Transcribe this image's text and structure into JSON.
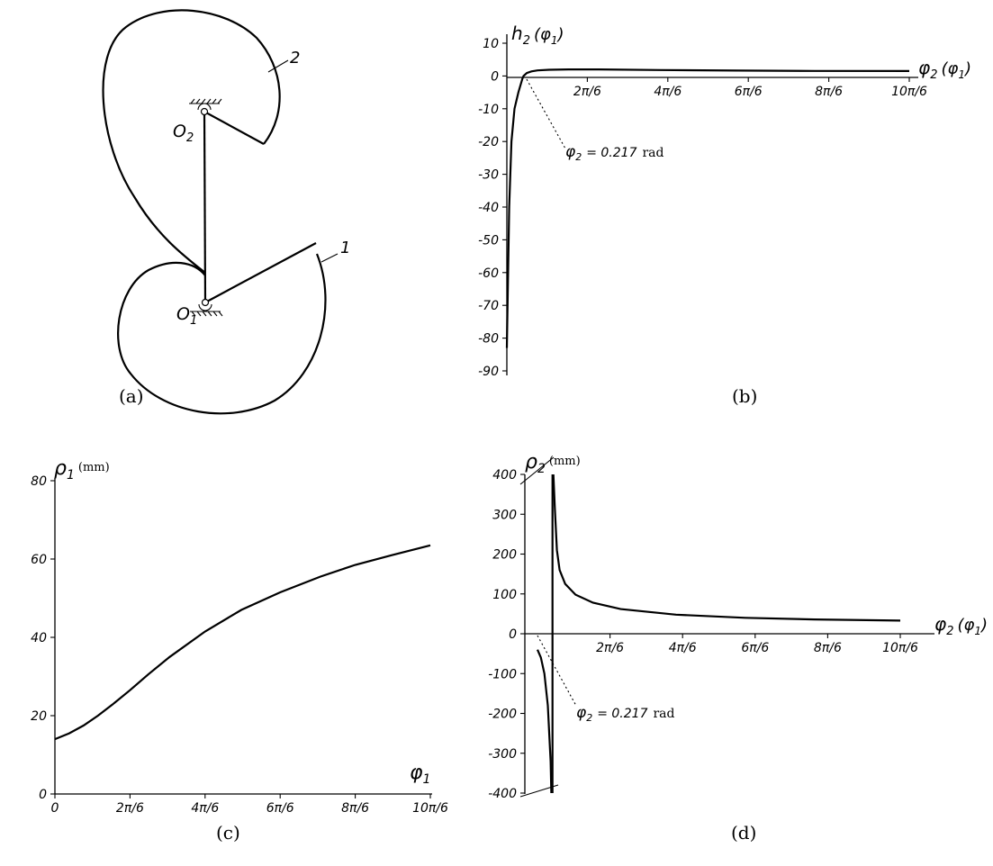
{
  "panel_a": {
    "caption": "(a)",
    "label_o2_base": "O",
    "label_o2_sub": "2",
    "label_o1_base": "O",
    "label_o1_sub": "1",
    "label_gear2": "2",
    "label_gear1": "1"
  },
  "chart_data": [
    {
      "id": "b",
      "type": "line",
      "caption": "(b)",
      "ylabel_base": "h",
      "ylabel_sub": "2",
      "ylabel_arg": "(φ",
      "ylabel_arg_sub": "1",
      "ylabel_close": ")",
      "xlabel_base": "φ",
      "xlabel_sub": "2",
      "xlabel_arg": "(φ",
      "xlabel_arg_sub": "1",
      "xlabel_close": ")",
      "xlim": [
        0,
        5.236
      ],
      "ylim": [
        -90,
        10
      ],
      "yticks": [
        10,
        0,
        -10,
        -20,
        -30,
        -40,
        -50,
        -60,
        -70,
        -80,
        -90
      ],
      "xtick_labels": [
        "2π/6",
        "4π/6",
        "6π/6",
        "8π/6",
        "10π/6"
      ],
      "annotation": {
        "phi_base": "φ",
        "phi_sub": "2",
        "text": "= 0.217",
        "unit": "rad",
        "x": 0.217,
        "y": 0
      },
      "series": [
        {
          "x": [
            0.0,
            0.03,
            0.06,
            0.1,
            0.15,
            0.2,
            0.217,
            0.26,
            0.32,
            0.4,
            0.55,
            0.8,
            1.2,
            2.0,
            3.0,
            4.0,
            5.236
          ],
          "y": [
            -83,
            -40,
            -20,
            -10,
            -5,
            -1,
            0,
            0.9,
            1.4,
            1.7,
            1.9,
            2.0,
            2.0,
            1.8,
            1.65,
            1.55,
            1.5
          ]
        }
      ]
    },
    {
      "id": "c",
      "type": "line",
      "caption": "(c)",
      "ylabel_base": "ρ",
      "ylabel_sub": "1",
      "ylabel_unit": "(mm)",
      "xlabel_base": "φ",
      "xlabel_sub": "1",
      "xlim": [
        0,
        5.236
      ],
      "ylim": [
        0,
        80
      ],
      "yticks": [
        0,
        20,
        40,
        60,
        80
      ],
      "xtick_labels": [
        "0",
        "2π/6",
        "4π/6",
        "6π/6",
        "8π/6",
        "10π/6"
      ],
      "series": [
        {
          "x": [
            0.0,
            0.2,
            0.4,
            0.6,
            0.8,
            1.047,
            1.3,
            1.6,
            2.094,
            2.6,
            3.142,
            3.7,
            4.189,
            4.7,
            5.236
          ],
          "y": [
            14,
            15.5,
            17.5,
            20,
            22.8,
            26.5,
            30.5,
            35,
            41.5,
            47,
            51.5,
            55.5,
            58.5,
            61,
            63.5
          ]
        }
      ]
    },
    {
      "id": "d",
      "type": "line",
      "caption": "(d)",
      "ylabel_base": "ρ",
      "ylabel_sub": "2",
      "ylabel_unit": "(mm)",
      "xlabel_base": "φ",
      "xlabel_sub": "2",
      "xlabel_arg": "(φ",
      "xlabel_arg_sub": "1",
      "xlabel_close": ")",
      "xlim": [
        -0.25,
        5.236
      ],
      "ylim": [
        -400,
        400
      ],
      "yticks": [
        400,
        300,
        200,
        100,
        0,
        -100,
        -200,
        -300,
        -400
      ],
      "xtick_labels": [
        "2π/6",
        "4π/6",
        "6π/6",
        "8π/6",
        "10π/6"
      ],
      "annotation": {
        "phi_base": "φ",
        "phi_sub": "2",
        "text": "= 0.217",
        "unit": "rad",
        "x": 0.217,
        "y": 0
      },
      "series": [
        {
          "name": "",
          "x": [
            0.0,
            0.05,
            0.1,
            0.15,
            0.19,
            0.2
          ],
          "y": [
            -40,
            -60,
            -100,
            -180,
            -320,
            -400
          ]
        },
        {
          "name": "",
          "x": [
            0.23,
            0.25,
            0.28,
            0.32,
            0.4,
            0.55,
            0.8,
            1.2,
            2.0,
            3.0,
            4.0,
            5.236
          ],
          "y": [
            400,
            320,
            210,
            160,
            125,
            98,
            78,
            62,
            48,
            40,
            36,
            33
          ]
        }
      ]
    }
  ]
}
